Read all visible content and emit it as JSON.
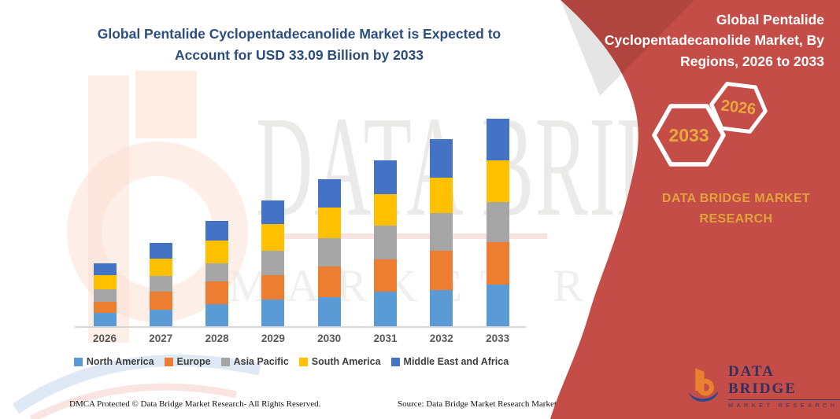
{
  "title": "Global Pentalide Cyclopentadecanolide Market is Expected to Account for USD 33.09 Billion by 2033",
  "chart_data": {
    "type": "bar",
    "stacked": true,
    "title": "Global Pentalide Cyclopentadecanolide Market, By Regions, 2026 to 2033",
    "unit": "USD Billion",
    "xlabel": "",
    "ylabel": "",
    "ylim": [
      0,
      34
    ],
    "grid": false,
    "legend_position": "bottom",
    "categories": [
      "2026",
      "2027",
      "2028",
      "2029",
      "2030",
      "2031",
      "2032",
      "2033"
    ],
    "series": [
      {
        "name": "North America",
        "color": "#5B9BD5",
        "values": [
          2.1,
          2.7,
          3.5,
          4.3,
          4.7,
          5.5,
          5.8,
          6.7
        ]
      },
      {
        "name": "Europe",
        "color": "#ED7D31",
        "values": [
          1.8,
          2.8,
          3.6,
          3.9,
          4.8,
          5.2,
          6.2,
          6.7
        ]
      },
      {
        "name": "Asia Pacific",
        "color": "#A5A5A5",
        "values": [
          2.0,
          2.6,
          2.9,
          3.8,
          4.6,
          5.4,
          6.0,
          6.4
        ]
      },
      {
        "name": "South America",
        "color": "#FFC000",
        "values": [
          2.2,
          2.7,
          3.7,
          4.3,
          4.8,
          5.0,
          5.7,
          6.7
        ]
      },
      {
        "name": "Middle East and Africa",
        "color": "#4472C4",
        "values": [
          1.9,
          2.5,
          3.1,
          3.8,
          4.5,
          5.3,
          6.1,
          6.6
        ]
      }
    ],
    "totals_estimated": [
      10.0,
      13.3,
      16.8,
      20.1,
      23.4,
      26.4,
      29.8,
      33.09
    ]
  },
  "right_panel": {
    "heading": "Global Pentalide Cyclopentadecanolide Market, By Regions, 2026 to 2033",
    "hexagon_left": "2033",
    "hexagon_right": "2026",
    "brand_line1": "DATA BRIDGE MARKET",
    "brand_line2": "RESEARCH",
    "panel_red": "#C44D47",
    "accent_gold": "#E2A23C"
  },
  "logo": {
    "brand": "DATA BRIDGE",
    "tagline": "MARKET RESEARCH"
  },
  "watermark": {
    "line1": "DATA BRIDGE",
    "line2": "MARKET RESEARCH"
  },
  "footer": {
    "left": "DMCA Protected © Data Bridge Market Research-  All Rights Reserved.",
    "source": "Source: Data Bridge Market Research  Market Analysis Study 2026"
  }
}
